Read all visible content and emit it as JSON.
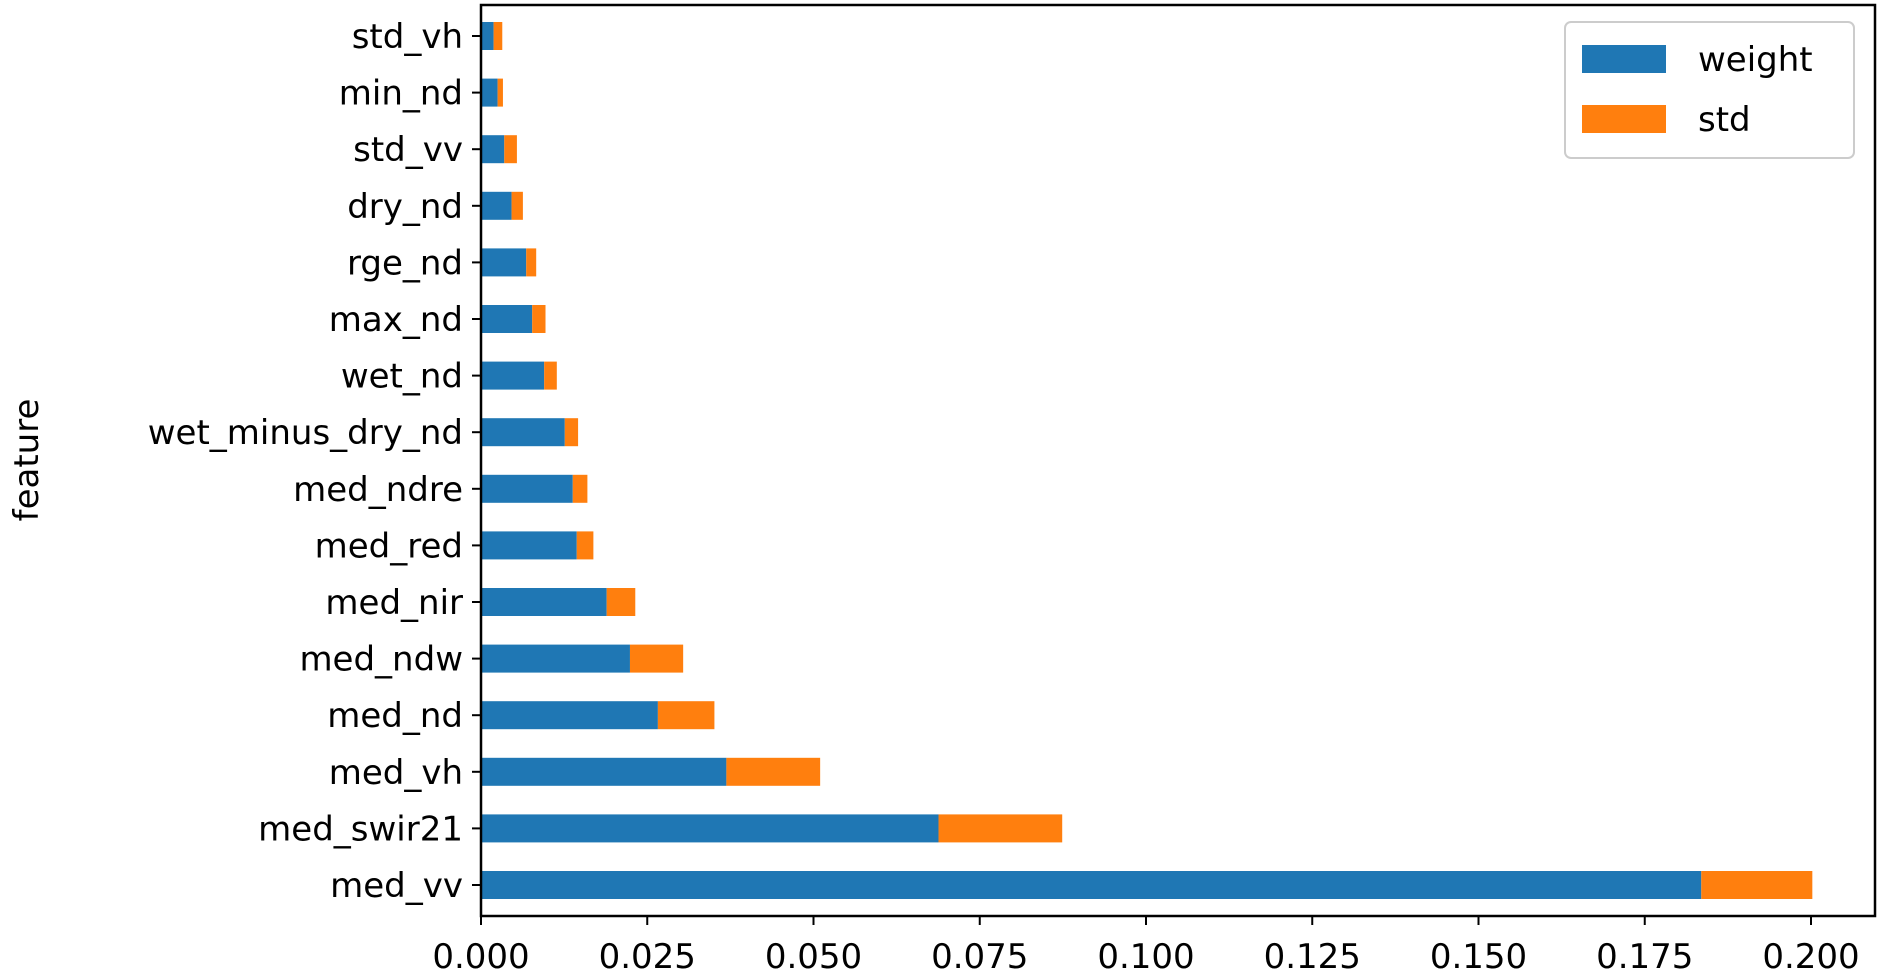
{
  "chart_data": {
    "type": "bar",
    "orientation": "horizontal",
    "stacked": true,
    "title": "",
    "xlabel": "",
    "ylabel": "feature",
    "categories": [
      "med_vv",
      "med_swir21",
      "med_vh",
      "med_nd",
      "med_ndw",
      "med_nir",
      "med_red",
      "med_ndre",
      "wet_minus_dry_nd",
      "wet_nd",
      "max_nd",
      "rge_nd",
      "dry_nd",
      "std_vv",
      "min_nd",
      "std_vh"
    ],
    "series": [
      {
        "name": "weight",
        "color": "#1f77b4",
        "values": [
          0.1835,
          0.0688,
          0.0369,
          0.0266,
          0.0224,
          0.0189,
          0.0144,
          0.0138,
          0.0126,
          0.0095,
          0.0077,
          0.0068,
          0.0046,
          0.0035,
          0.0025,
          0.0019
        ]
      },
      {
        "name": "std",
        "color": "#ff7f0e",
        "values": [
          0.0167,
          0.0186,
          0.0141,
          0.0085,
          0.008,
          0.0043,
          0.0025,
          0.0022,
          0.002,
          0.0019,
          0.002,
          0.0015,
          0.0017,
          0.0019,
          0.0008,
          0.0013
        ]
      }
    ],
    "xlim": [
      0,
      0.21
    ],
    "xticks": [
      "0.000",
      "0.025",
      "0.050",
      "0.075",
      "0.100",
      "0.125",
      "0.150",
      "0.175",
      "0.200"
    ],
    "xtick_values": [
      0,
      0.025,
      0.05,
      0.075,
      0.1,
      0.125,
      0.15,
      0.175,
      0.2
    ],
    "grid": false,
    "legend_position": "top-right"
  }
}
